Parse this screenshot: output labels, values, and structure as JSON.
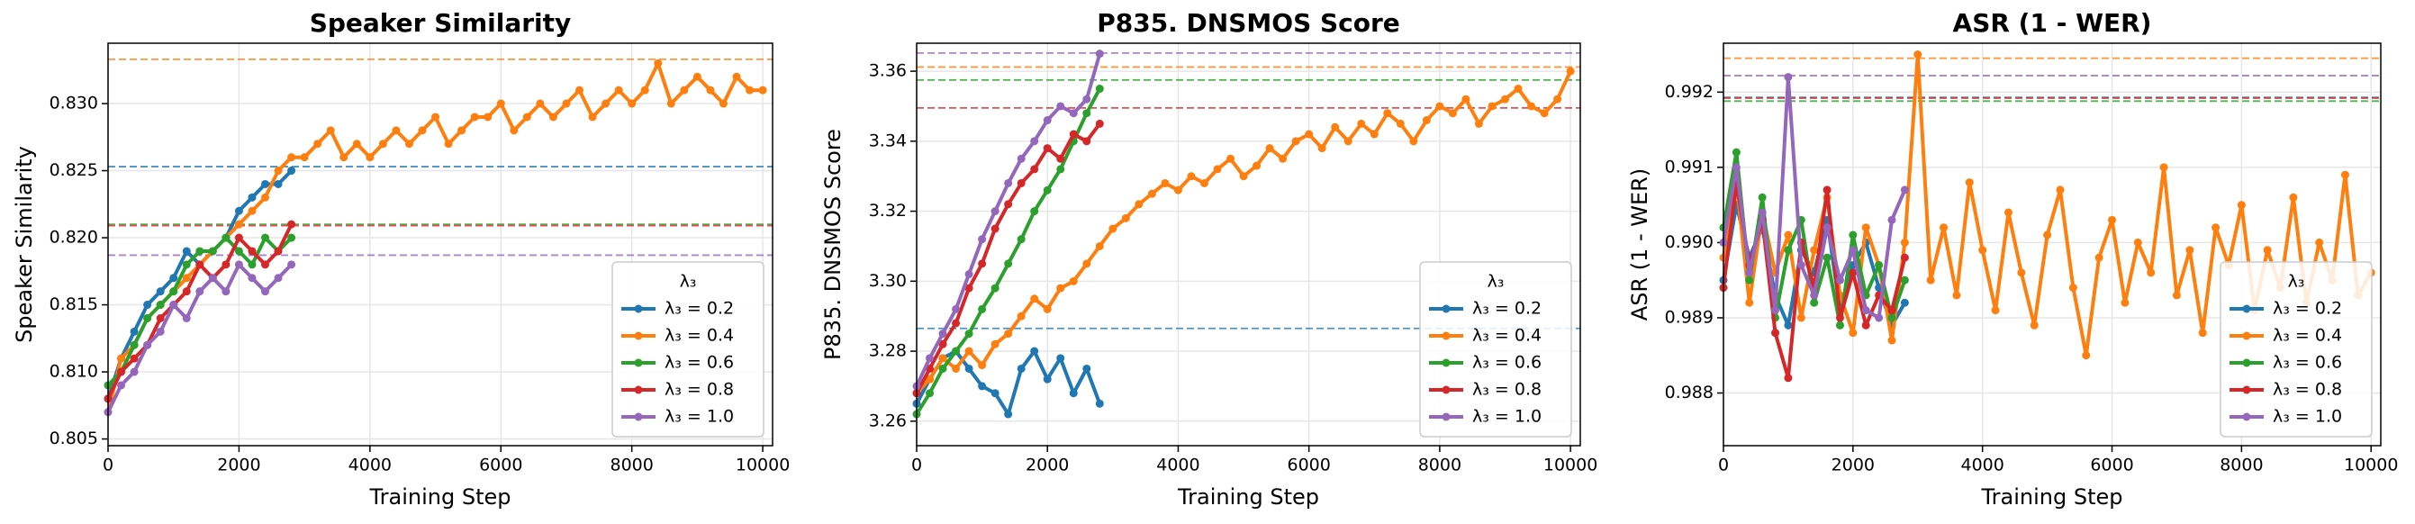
{
  "chart_data": [
    {
      "type": "line",
      "title": "Speaker Similarity",
      "xlabel": "Training Step",
      "ylabel": "Speaker Similarity",
      "xlim": [
        0,
        10150
      ],
      "ylim": [
        0.8045,
        0.8345
      ],
      "xticks": [
        0,
        2000,
        4000,
        6000,
        8000,
        10000
      ],
      "yticks": [
        0.805,
        {
          "value": 0.81,
          "label": "0.810"
        },
        0.815,
        {
          "value": 0.82,
          "label": "0.820"
        },
        0.825,
        {
          "value": 0.83,
          "label": "0.830"
        }
      ],
      "grid": true,
      "legend": "lower right",
      "legend_title": "λ₃",
      "series": [
        {
          "name": "λ₃ = 0.2",
          "color": "#1f77b4",
          "best": 0.8253,
          "x": [
            0,
            200,
            400,
            600,
            800,
            1000,
            1200,
            1400,
            1600,
            1800,
            2000,
            2200,
            2400,
            2600,
            2800
          ],
          "values": [
            0.808,
            0.811,
            0.813,
            0.815,
            0.816,
            0.817,
            0.819,
            0.818,
            0.819,
            0.82,
            0.822,
            0.823,
            0.824,
            0.824,
            0.825
          ]
        },
        {
          "name": "λ₃ = 0.4",
          "color": "#ff7f0e",
          "best": 0.8333,
          "x": [
            0,
            200,
            400,
            600,
            800,
            1000,
            1200,
            1400,
            1600,
            1800,
            2000,
            2200,
            2400,
            2600,
            2800,
            3000,
            3200,
            3400,
            3600,
            3800,
            4000,
            4200,
            4400,
            4600,
            4800,
            5000,
            5200,
            5400,
            5600,
            5800,
            6000,
            6200,
            6400,
            6600,
            6800,
            7000,
            7200,
            7400,
            7600,
            7800,
            8000,
            8200,
            8400,
            8600,
            8800,
            9000,
            9200,
            9400,
            9600,
            9800,
            10000
          ],
          "values": [
            0.807,
            0.811,
            0.812,
            0.814,
            0.815,
            0.816,
            0.817,
            0.818,
            0.819,
            0.82,
            0.821,
            0.822,
            0.823,
            0.825,
            0.826,
            0.826,
            0.827,
            0.828,
            0.826,
            0.827,
            0.826,
            0.827,
            0.828,
            0.827,
            0.828,
            0.829,
            0.827,
            0.828,
            0.829,
            0.829,
            0.83,
            0.828,
            0.829,
            0.83,
            0.829,
            0.83,
            0.831,
            0.829,
            0.83,
            0.831,
            0.83,
            0.831,
            0.833,
            0.83,
            0.831,
            0.832,
            0.831,
            0.83,
            0.832,
            0.831,
            0.831
          ]
        },
        {
          "name": "λ₃ = 0.6",
          "color": "#2ca02c",
          "best": 0.821,
          "x": [
            0,
            200,
            400,
            600,
            800,
            1000,
            1200,
            1400,
            1600,
            1800,
            2000,
            2200,
            2400,
            2600,
            2800
          ],
          "values": [
            0.809,
            0.81,
            0.812,
            0.814,
            0.815,
            0.816,
            0.818,
            0.819,
            0.819,
            0.82,
            0.819,
            0.818,
            0.82,
            0.819,
            0.82
          ]
        },
        {
          "name": "λ₃ = 0.8",
          "color": "#d62728",
          "best": 0.8209,
          "x": [
            0,
            200,
            400,
            600,
            800,
            1000,
            1200,
            1400,
            1600,
            1800,
            2000,
            2200,
            2400,
            2600,
            2800
          ],
          "values": [
            0.808,
            0.81,
            0.811,
            0.812,
            0.814,
            0.815,
            0.816,
            0.818,
            0.817,
            0.818,
            0.82,
            0.819,
            0.818,
            0.819,
            0.821
          ]
        },
        {
          "name": "λ₃ = 1.0",
          "color": "#9467bd",
          "best": 0.8187,
          "x": [
            0,
            200,
            400,
            600,
            800,
            1000,
            1200,
            1400,
            1600,
            1800,
            2000,
            2200,
            2400,
            2600,
            2800
          ],
          "values": [
            0.807,
            0.809,
            0.81,
            0.812,
            0.813,
            0.815,
            0.814,
            0.816,
            0.817,
            0.816,
            0.818,
            0.817,
            0.816,
            0.817,
            0.818
          ]
        }
      ]
    },
    {
      "type": "line",
      "title": "P835. DNSMOS Score",
      "xlabel": "Training Step",
      "ylabel": "P835. DNSMOS Score",
      "xlim": [
        0,
        10150
      ],
      "ylim": [
        3.253,
        3.368
      ],
      "xticks": [
        0,
        2000,
        4000,
        6000,
        8000,
        10000
      ],
      "yticks": [
        3.26,
        3.28,
        {
          "value": 3.3,
          "label": "3.30"
        },
        3.32,
        3.34,
        3.36
      ],
      "grid": true,
      "legend": "lower right",
      "legend_title": "λ₃",
      "series": [
        {
          "name": "λ₃ = 0.2",
          "color": "#1f77b4",
          "best": 3.2865,
          "x": [
            0,
            200,
            400,
            600,
            800,
            1000,
            1200,
            1400,
            1600,
            1800,
            2000,
            2200,
            2400,
            2600,
            2800
          ],
          "values": [
            3.265,
            3.272,
            3.278,
            3.28,
            3.275,
            3.27,
            3.268,
            3.262,
            3.275,
            3.28,
            3.272,
            3.278,
            3.268,
            3.275,
            3.265
          ]
        },
        {
          "name": "λ₃ = 0.4",
          "color": "#ff7f0e",
          "best": 3.3612,
          "x": [
            0,
            200,
            400,
            600,
            800,
            1000,
            1200,
            1400,
            1600,
            1800,
            2000,
            2200,
            2400,
            2600,
            2800,
            3000,
            3200,
            3400,
            3600,
            3800,
            4000,
            4200,
            4400,
            4600,
            4800,
            5000,
            5200,
            5400,
            5600,
            5800,
            6000,
            6200,
            6400,
            6600,
            6800,
            7000,
            7200,
            7400,
            7600,
            7800,
            8000,
            8200,
            8400,
            8600,
            8800,
            9000,
            9200,
            9400,
            9600,
            9800,
            10000
          ],
          "values": [
            3.268,
            3.272,
            3.278,
            3.275,
            3.28,
            3.276,
            3.282,
            3.285,
            3.29,
            3.295,
            3.292,
            3.298,
            3.3,
            3.305,
            3.31,
            3.315,
            3.318,
            3.322,
            3.325,
            3.328,
            3.326,
            3.33,
            3.328,
            3.332,
            3.335,
            3.33,
            3.333,
            3.338,
            3.335,
            3.34,
            3.342,
            3.338,
            3.344,
            3.34,
            3.345,
            3.342,
            3.348,
            3.345,
            3.34,
            3.346,
            3.35,
            3.348,
            3.352,
            3.345,
            3.35,
            3.352,
            3.355,
            3.35,
            3.348,
            3.352,
            3.36
          ]
        },
        {
          "name": "λ₃ = 0.6",
          "color": "#2ca02c",
          "best": 3.3575,
          "x": [
            0,
            200,
            400,
            600,
            800,
            1000,
            1200,
            1400,
            1600,
            1800,
            2000,
            2200,
            2400,
            2600,
            2800
          ],
          "values": [
            3.262,
            3.268,
            3.275,
            3.28,
            3.285,
            3.292,
            3.298,
            3.305,
            3.312,
            3.32,
            3.326,
            3.332,
            3.34,
            3.348,
            3.355
          ]
        },
        {
          "name": "λ₃ = 0.8",
          "color": "#d62728",
          "best": 3.3495,
          "x": [
            0,
            200,
            400,
            600,
            800,
            1000,
            1200,
            1400,
            1600,
            1800,
            2000,
            2200,
            2400,
            2600,
            2800
          ],
          "values": [
            3.268,
            3.275,
            3.282,
            3.288,
            3.298,
            3.305,
            3.315,
            3.322,
            3.328,
            3.332,
            3.338,
            3.335,
            3.342,
            3.34,
            3.345
          ]
        },
        {
          "name": "λ₃ = 1.0",
          "color": "#9467bd",
          "best": 3.3652,
          "x": [
            0,
            200,
            400,
            600,
            800,
            1000,
            1200,
            1400,
            1600,
            1800,
            2000,
            2200,
            2400,
            2600,
            2800
          ],
          "values": [
            3.27,
            3.278,
            3.285,
            3.292,
            3.302,
            3.312,
            3.32,
            3.328,
            3.335,
            3.34,
            3.346,
            3.35,
            3.348,
            3.352,
            3.365
          ]
        }
      ]
    },
    {
      "type": "line",
      "title": "ASR (1 - WER)",
      "xlabel": "Training Step",
      "ylabel": "ASR (1 - WER)",
      "xlim": [
        0,
        10150
      ],
      "ylim": [
        0.9873,
        0.99265
      ],
      "xticks": [
        0,
        2000,
        4000,
        6000,
        8000,
        10000
      ],
      "yticks": [
        0.988,
        0.989,
        {
          "value": 0.99,
          "label": "0.990"
        },
        0.991,
        0.992
      ],
      "grid": true,
      "legend": "lower right",
      "legend_title": "λ₃",
      "series": [
        {
          "name": "λ₃ = 0.2",
          "color": "#1f77b4",
          "best": 0.99193,
          "x": [
            0,
            200,
            400,
            600,
            800,
            1000,
            1200,
            1400,
            1600,
            1800,
            2000,
            2200,
            2400,
            2600,
            2800
          ],
          "values": [
            0.9895,
            0.9905,
            0.9898,
            0.9902,
            0.9893,
            0.9889,
            0.9899,
            0.9896,
            0.9903,
            0.9891,
            0.9897,
            0.99,
            0.9894,
            0.9889,
            0.9892
          ]
        },
        {
          "name": "λ₃ = 0.4",
          "color": "#ff7f0e",
          "best": 0.99245,
          "x": [
            0,
            200,
            400,
            600,
            800,
            1000,
            1200,
            1400,
            1600,
            1800,
            2000,
            2200,
            2400,
            2600,
            2800,
            3000,
            3200,
            3400,
            3600,
            3800,
            4000,
            4200,
            4400,
            4600,
            4800,
            5000,
            5200,
            5400,
            5600,
            5800,
            6000,
            6200,
            6400,
            6600,
            6800,
            7000,
            7200,
            7400,
            7600,
            7800,
            8000,
            8200,
            8400,
            8600,
            8800,
            9000,
            9200,
            9400,
            9600,
            9800,
            10000
          ],
          "values": [
            0.9898,
            0.9908,
            0.9892,
            0.9904,
            0.9896,
            0.9901,
            0.989,
            0.9899,
            0.9906,
            0.9893,
            0.9888,
            0.9902,
            0.9897,
            0.9887,
            0.99,
            0.9925,
            0.9895,
            0.9902,
            0.9893,
            0.9908,
            0.9899,
            0.9891,
            0.9904,
            0.9896,
            0.9889,
            0.9901,
            0.9907,
            0.9894,
            0.9885,
            0.9898,
            0.9903,
            0.9892,
            0.99,
            0.9896,
            0.991,
            0.9893,
            0.9899,
            0.9888,
            0.9902,
            0.9897,
            0.9905,
            0.9891,
            0.9899,
            0.9894,
            0.9906,
            0.9892,
            0.99,
            0.9895,
            0.9909,
            0.9893,
            0.9896
          ]
        },
        {
          "name": "λ₃ = 0.6",
          "color": "#2ca02c",
          "best": 0.99188,
          "x": [
            0,
            200,
            400,
            600,
            800,
            1000,
            1200,
            1400,
            1600,
            1800,
            2000,
            2200,
            2400,
            2600,
            2800
          ],
          "values": [
            0.9902,
            0.9912,
            0.9895,
            0.9906,
            0.989,
            0.9899,
            0.9903,
            0.9892,
            0.9898,
            0.9889,
            0.9901,
            0.9893,
            0.9897,
            0.989,
            0.9895
          ]
        },
        {
          "name": "λ₃ = 0.8",
          "color": "#d62728",
          "best": 0.99192,
          "x": [
            0,
            200,
            400,
            600,
            800,
            1000,
            1200,
            1400,
            1600,
            1800,
            2000,
            2200,
            2400,
            2600,
            2800
          ],
          "values": [
            0.9894,
            0.9908,
            0.9897,
            0.9903,
            0.9888,
            0.9882,
            0.99,
            0.9894,
            0.9907,
            0.989,
            0.9896,
            0.9889,
            0.9893,
            0.9891,
            0.9898
          ]
        },
        {
          "name": "λ₃ = 1.0",
          "color": "#9467bd",
          "best": 0.99222,
          "x": [
            0,
            200,
            400,
            600,
            800,
            1000,
            1200,
            1400,
            1600,
            1800,
            2000,
            2200,
            2400,
            2600,
            2800
          ],
          "values": [
            0.99,
            0.991,
            0.9896,
            0.9904,
            0.9891,
            0.9922,
            0.9897,
            0.9893,
            0.9902,
            0.9895,
            0.9899,
            0.9891,
            0.989,
            0.9903,
            0.9907
          ]
        }
      ]
    }
  ]
}
